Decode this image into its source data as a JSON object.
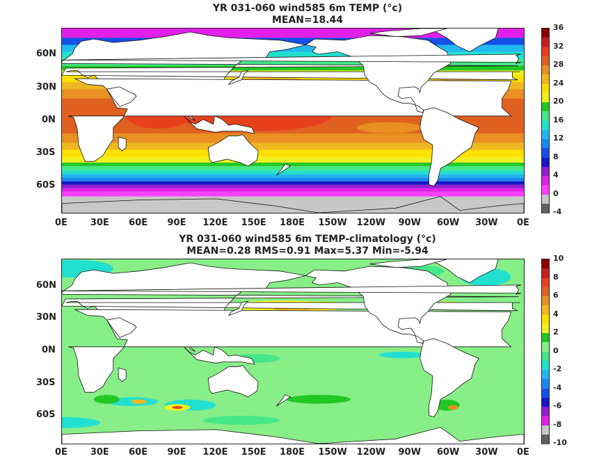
{
  "panels": [
    {
      "title_line1": "YR 031-060 wind585 6m TEMP (°c)",
      "title_line2": "MEAN=18.44",
      "lat_labels": [
        "60N",
        "30N",
        "0N",
        "30S",
        "60S"
      ],
      "lon_labels": [
        "0E",
        "30E",
        "60E",
        "90E",
        "120E",
        "150E",
        "180E",
        "150W",
        "120W",
        "90W",
        "60W",
        "30W",
        "0E"
      ],
      "colorbar_labels": [
        "36",
        "32",
        "28",
        "24",
        "20",
        "16",
        "12",
        "8",
        "4",
        "0",
        "-4"
      ],
      "colorbar_colors": [
        "#8b0000",
        "#c41e1e",
        "#e8401c",
        "#e06020",
        "#e89020",
        "#f0b820",
        "#ffe000",
        "#f0f020",
        "#22c822",
        "#44e888",
        "#22e0d0",
        "#20b8f0",
        "#1888f0",
        "#1450e8",
        "#1818c8",
        "#9020d0",
        "#e020e8",
        "#ff40ff",
        "#c8c8c8",
        "#606060"
      ],
      "field_type": "sst"
    },
    {
      "title_line1": "YR 031-060 wind585 6m TEMP-climatology (°c)",
      "title_line2": "MEAN=0.28   RMS=0.91   Max=5.37   Min=-5.94",
      "lat_labels": [
        "60N",
        "30N",
        "0N",
        "30S",
        "60S"
      ],
      "lon_labels": [
        "0E",
        "30E",
        "60E",
        "90E",
        "120E",
        "150E",
        "180E",
        "150W",
        "120W",
        "90W",
        "60W",
        "30W",
        "0E"
      ],
      "colorbar_labels": [
        "10",
        "8",
        "6",
        "4",
        "2",
        "0",
        "-2",
        "-4",
        "-6",
        "-8",
        "-10"
      ],
      "colorbar_colors": [
        "#8b0000",
        "#c41e1e",
        "#e8401c",
        "#e06020",
        "#e89020",
        "#f0b820",
        "#ffe000",
        "#f0f020",
        "#22c822",
        "#88ee88",
        "#44e888",
        "#22e0d0",
        "#20b8f0",
        "#1888f0",
        "#1450e8",
        "#1818c8",
        "#9020d0",
        "#e020e8",
        "#c8c8c8",
        "#606060"
      ],
      "field_type": "anomaly"
    }
  ]
}
